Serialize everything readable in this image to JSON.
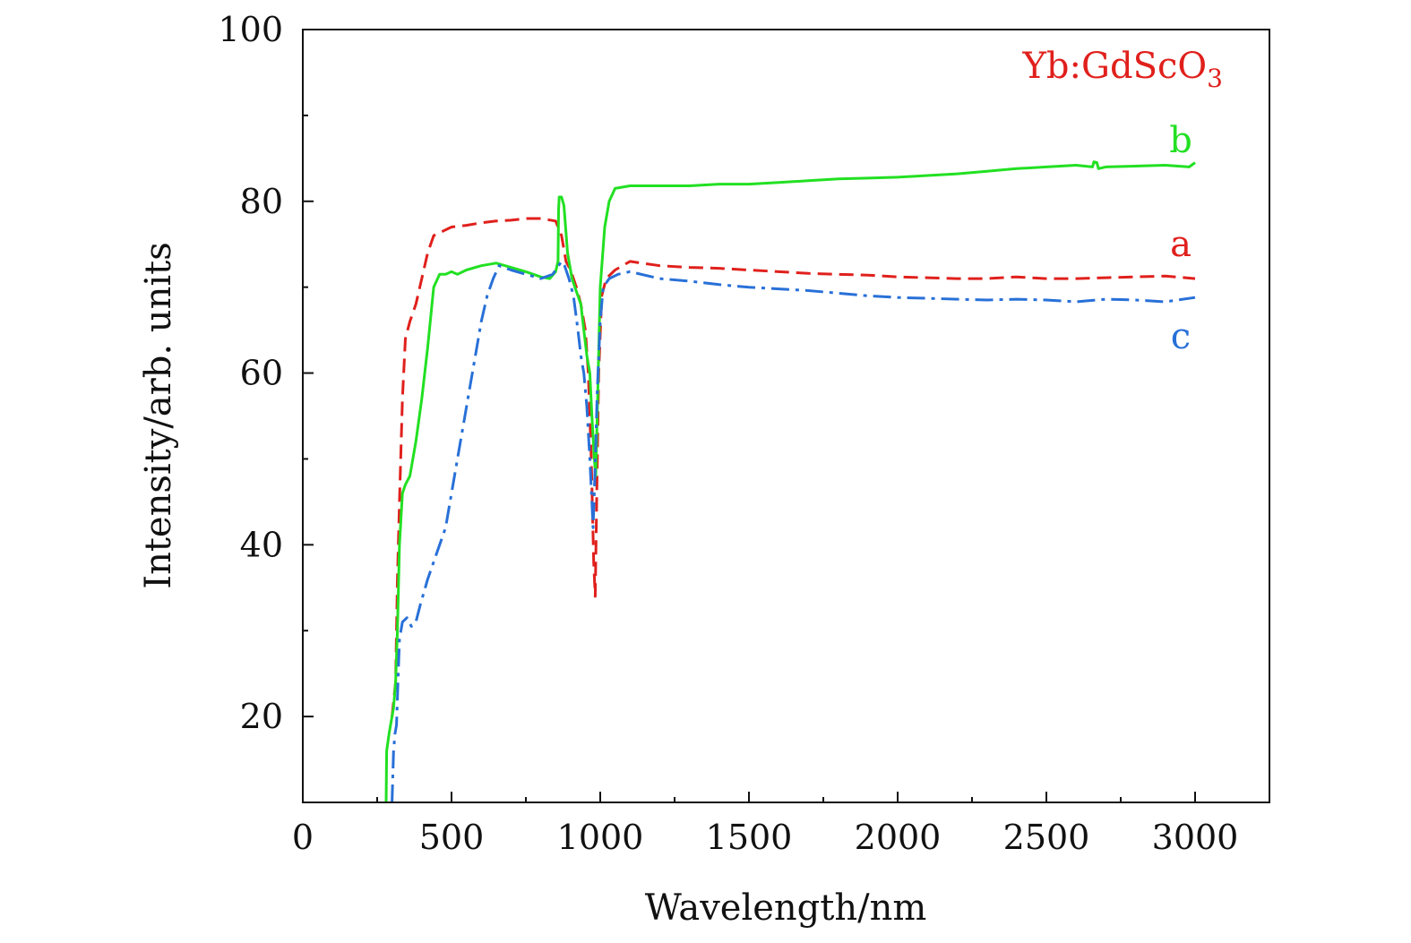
{
  "chart_data": {
    "type": "line",
    "xlabel": "Wavelength/nm",
    "ylabel": "Intensity/arb. units",
    "xlim": [
      0,
      3250
    ],
    "ylim": [
      10,
      100
    ],
    "xticks": [
      0,
      500,
      1000,
      1500,
      2000,
      2500,
      3000
    ],
    "yticks": [
      20,
      40,
      60,
      80,
      100
    ],
    "grid": false,
    "annotation": {
      "main": "Yb:GdScO",
      "sub": "3",
      "color": "#e0201c"
    },
    "series": [
      {
        "name": "a",
        "color": "#e0201c",
        "dash": "16,8",
        "points": [
          [
            300,
            20
          ],
          [
            312,
            24
          ],
          [
            318,
            36
          ],
          [
            325,
            45
          ],
          [
            335,
            57
          ],
          [
            345,
            64
          ],
          [
            360,
            66
          ],
          [
            380,
            68
          ],
          [
            400,
            71
          ],
          [
            420,
            74
          ],
          [
            440,
            76
          ],
          [
            470,
            76.5
          ],
          [
            500,
            77
          ],
          [
            550,
            77.2
          ],
          [
            600,
            77.5
          ],
          [
            650,
            77.7
          ],
          [
            700,
            77.8
          ],
          [
            750,
            78
          ],
          [
            800,
            78
          ],
          [
            850,
            77.7
          ],
          [
            870,
            76
          ],
          [
            885,
            73
          ],
          [
            900,
            72
          ],
          [
            920,
            70
          ],
          [
            935,
            68
          ],
          [
            950,
            65
          ],
          [
            960,
            60
          ],
          [
            970,
            50
          ],
          [
            978,
            38
          ],
          [
            983,
            34
          ],
          [
            988,
            45
          ],
          [
            995,
            60
          ],
          [
            1005,
            69
          ],
          [
            1020,
            71
          ],
          [
            1050,
            72
          ],
          [
            1100,
            73
          ],
          [
            1200,
            72.5
          ],
          [
            1300,
            72.3
          ],
          [
            1400,
            72.2
          ],
          [
            1500,
            72
          ],
          [
            1600,
            71.8
          ],
          [
            1700,
            71.6
          ],
          [
            1800,
            71.5
          ],
          [
            1900,
            71.4
          ],
          [
            2000,
            71.2
          ],
          [
            2100,
            71.1
          ],
          [
            2200,
            71
          ],
          [
            2300,
            71
          ],
          [
            2400,
            71.2
          ],
          [
            2500,
            71
          ],
          [
            2600,
            71
          ],
          [
            2700,
            71.1
          ],
          [
            2800,
            71.2
          ],
          [
            2900,
            71.3
          ],
          [
            3000,
            71
          ]
        ]
      },
      {
        "name": "b",
        "color": "#22e022",
        "dash": "",
        "points": [
          [
            280,
            10
          ],
          [
            282,
            16
          ],
          [
            290,
            18
          ],
          [
            300,
            20
          ],
          [
            305,
            21
          ],
          [
            312,
            24
          ],
          [
            318,
            30
          ],
          [
            325,
            40
          ],
          [
            335,
            46
          ],
          [
            345,
            47
          ],
          [
            360,
            48
          ],
          [
            380,
            52
          ],
          [
            400,
            57
          ],
          [
            420,
            63
          ],
          [
            440,
            70
          ],
          [
            460,
            71.5
          ],
          [
            480,
            71.5
          ],
          [
            500,
            71.8
          ],
          [
            520,
            71.5
          ],
          [
            550,
            72
          ],
          [
            600,
            72.5
          ],
          [
            650,
            72.8
          ],
          [
            700,
            72.3
          ],
          [
            750,
            71.8
          ],
          [
            800,
            71.2
          ],
          [
            830,
            71
          ],
          [
            850,
            71.8
          ],
          [
            858,
            73
          ],
          [
            860,
            79
          ],
          [
            862,
            80.5
          ],
          [
            870,
            80.5
          ],
          [
            878,
            79.5
          ],
          [
            890,
            74
          ],
          [
            905,
            71
          ],
          [
            920,
            69.5
          ],
          [
            935,
            68
          ],
          [
            945,
            65
          ],
          [
            955,
            62
          ],
          [
            965,
            60
          ],
          [
            972,
            55
          ],
          [
            980,
            50
          ],
          [
            985,
            48
          ],
          [
            992,
            58
          ],
          [
            1000,
            70
          ],
          [
            1015,
            77
          ],
          [
            1030,
            80
          ],
          [
            1050,
            81.5
          ],
          [
            1100,
            81.8
          ],
          [
            1200,
            81.8
          ],
          [
            1300,
            81.8
          ],
          [
            1400,
            82
          ],
          [
            1500,
            82
          ],
          [
            1600,
            82.2
          ],
          [
            1700,
            82.4
          ],
          [
            1800,
            82.6
          ],
          [
            1900,
            82.7
          ],
          [
            2000,
            82.8
          ],
          [
            2100,
            83
          ],
          [
            2200,
            83.2
          ],
          [
            2300,
            83.5
          ],
          [
            2400,
            83.8
          ],
          [
            2500,
            84
          ],
          [
            2600,
            84.2
          ],
          [
            2655,
            84
          ],
          [
            2660,
            84.6
          ],
          [
            2670,
            84.5
          ],
          [
            2675,
            83.8
          ],
          [
            2700,
            84
          ],
          [
            2800,
            84.1
          ],
          [
            2900,
            84.2
          ],
          [
            2980,
            84
          ],
          [
            3000,
            84.5
          ]
        ]
      },
      {
        "name": "c",
        "color": "#2870d8",
        "dash": "20,7,4,7",
        "points": [
          [
            300,
            10
          ],
          [
            305,
            16
          ],
          [
            310,
            18
          ],
          [
            315,
            19
          ],
          [
            320,
            24
          ],
          [
            325,
            29
          ],
          [
            335,
            31
          ],
          [
            350,
            31.5
          ],
          [
            365,
            30.5
          ],
          [
            380,
            31
          ],
          [
            395,
            33
          ],
          [
            420,
            36
          ],
          [
            450,
            39
          ],
          [
            480,
            42
          ],
          [
            500,
            46
          ],
          [
            520,
            50
          ],
          [
            540,
            54
          ],
          [
            560,
            58
          ],
          [
            580,
            62
          ],
          [
            600,
            66
          ],
          [
            620,
            69
          ],
          [
            640,
            71
          ],
          [
            660,
            72.5
          ],
          [
            700,
            72
          ],
          [
            750,
            71.5
          ],
          [
            800,
            71
          ],
          [
            840,
            71.5
          ],
          [
            860,
            72.5
          ],
          [
            870,
            73
          ],
          [
            880,
            72.5
          ],
          [
            895,
            71
          ],
          [
            910,
            69
          ],
          [
            925,
            65
          ],
          [
            935,
            62
          ],
          [
            945,
            60
          ],
          [
            955,
            56
          ],
          [
            965,
            50
          ],
          [
            972,
            45
          ],
          [
            976,
            42
          ],
          [
            982,
            48
          ],
          [
            990,
            58
          ],
          [
            1000,
            66
          ],
          [
            1010,
            70
          ],
          [
            1030,
            71
          ],
          [
            1060,
            71.5
          ],
          [
            1100,
            71.8
          ],
          [
            1200,
            71
          ],
          [
            1300,
            70.7
          ],
          [
            1400,
            70.3
          ],
          [
            1500,
            70
          ],
          [
            1600,
            69.8
          ],
          [
            1700,
            69.6
          ],
          [
            1800,
            69.3
          ],
          [
            1900,
            69
          ],
          [
            2000,
            68.8
          ],
          [
            2100,
            68.7
          ],
          [
            2200,
            68.6
          ],
          [
            2300,
            68.5
          ],
          [
            2400,
            68.6
          ],
          [
            2500,
            68.5
          ],
          [
            2600,
            68.3
          ],
          [
            2700,
            68.6
          ],
          [
            2800,
            68.5
          ],
          [
            2900,
            68.3
          ],
          [
            3000,
            68.8
          ]
        ]
      }
    ]
  }
}
